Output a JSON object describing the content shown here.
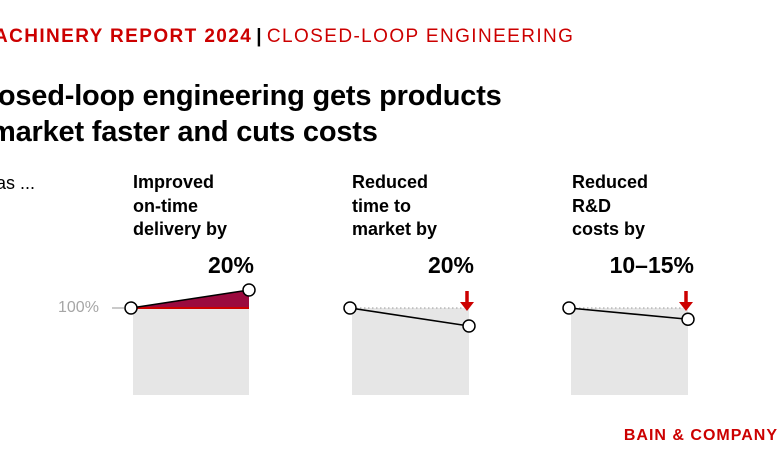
{
  "header": {
    "report": "ACHINERY REPORT 2024",
    "separator": "|",
    "section": "CLOSED-LOOP ENGINEERING"
  },
  "headline": "losed-loop engineering gets products\n market faster and cuts costs",
  "lead_text": "has ...",
  "baseline_label": "100%",
  "colors": {
    "accent": "#cc0000",
    "gain_fill": "#9b0a3e",
    "panel_fill": "#e6e6e6",
    "arrow": "#cc0000"
  },
  "chart_data": [
    {
      "type": "line",
      "title": "Improved\non-time\ndelivery by",
      "value_label": "20%",
      "baseline": 100,
      "start": 100,
      "end": 120,
      "direction": "up"
    },
    {
      "type": "line",
      "title": "Reduced\ntime to\nmarket by",
      "value_label": "20%",
      "baseline": 100,
      "start": 100,
      "end": 80,
      "direction": "down"
    },
    {
      "type": "line",
      "title": "Reduced\nR&D\ncosts by",
      "value_label": "10–15%",
      "baseline": 100,
      "start": 100,
      "end": 87.5,
      "direction": "down"
    }
  ],
  "brand": "BAIN & COMPANY"
}
